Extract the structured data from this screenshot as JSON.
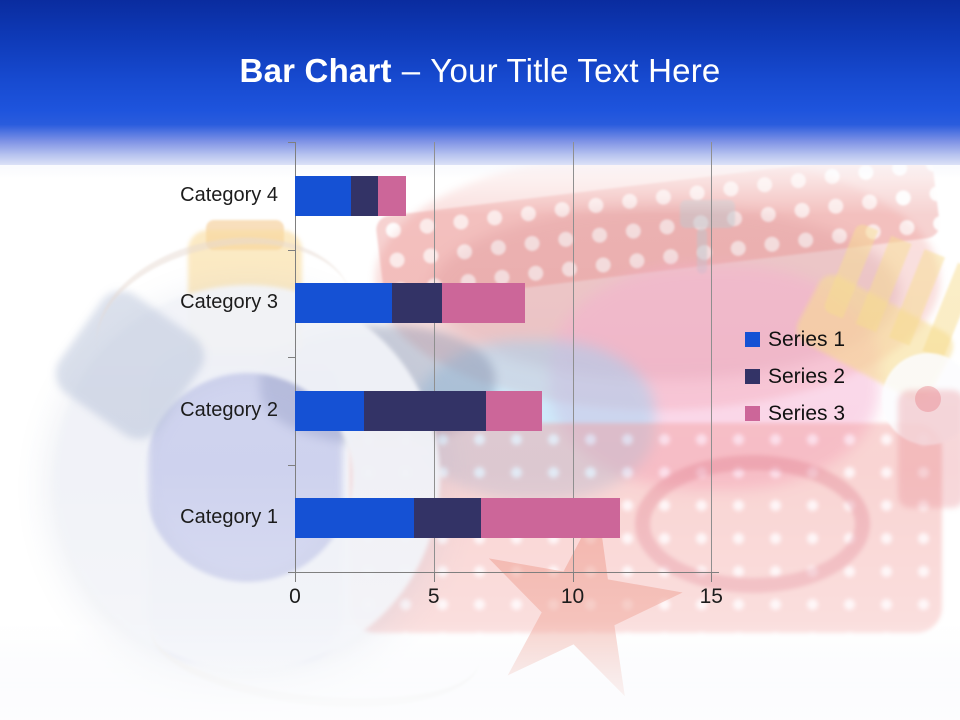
{
  "title": {
    "bold": "Bar Chart",
    "separator": "–",
    "rest": "Your Title Text Here"
  },
  "colors": {
    "header_gradient_top": "#0a2c9f",
    "header_gradient_mid": "#1e54dd",
    "header_gradient_bottom": "#ffffff",
    "title_text": "#ffffff",
    "axis_line": "#7f7f7f",
    "gridline": "#8f8f8f",
    "label_text": "#1c1c1c",
    "series1": "#1551d4",
    "series2": "#333366",
    "series3": "#cc6699"
  },
  "chart_data": {
    "type": "bar",
    "orientation": "horizontal",
    "stacked": true,
    "title": "",
    "xlabel": "",
    "ylabel": "",
    "categories": [
      "Category 1",
      "Category 2",
      "Category 3",
      "Category 4"
    ],
    "category_order_on_screen": "Category 4 at top, Category 1 at bottom",
    "series": [
      {
        "name": "Series 1",
        "color": "#1551d4",
        "values": [
          4.3,
          2.5,
          3.5,
          2
        ]
      },
      {
        "name": "Series 2",
        "color": "#333366",
        "values": [
          2.4,
          4.4,
          1.8,
          1
        ]
      },
      {
        "name": "Series 3",
        "color": "#cc6699",
        "values": [
          5,
          2,
          3,
          1
        ]
      }
    ],
    "x_ticks": [
      "0",
      "5",
      "10",
      "15"
    ],
    "xlim": [
      0,
      15.2
    ],
    "gridlines": "vertical",
    "legend_position": "right",
    "legend_entries": [
      "Series 1",
      "Series 2",
      "Series 3"
    ]
  }
}
